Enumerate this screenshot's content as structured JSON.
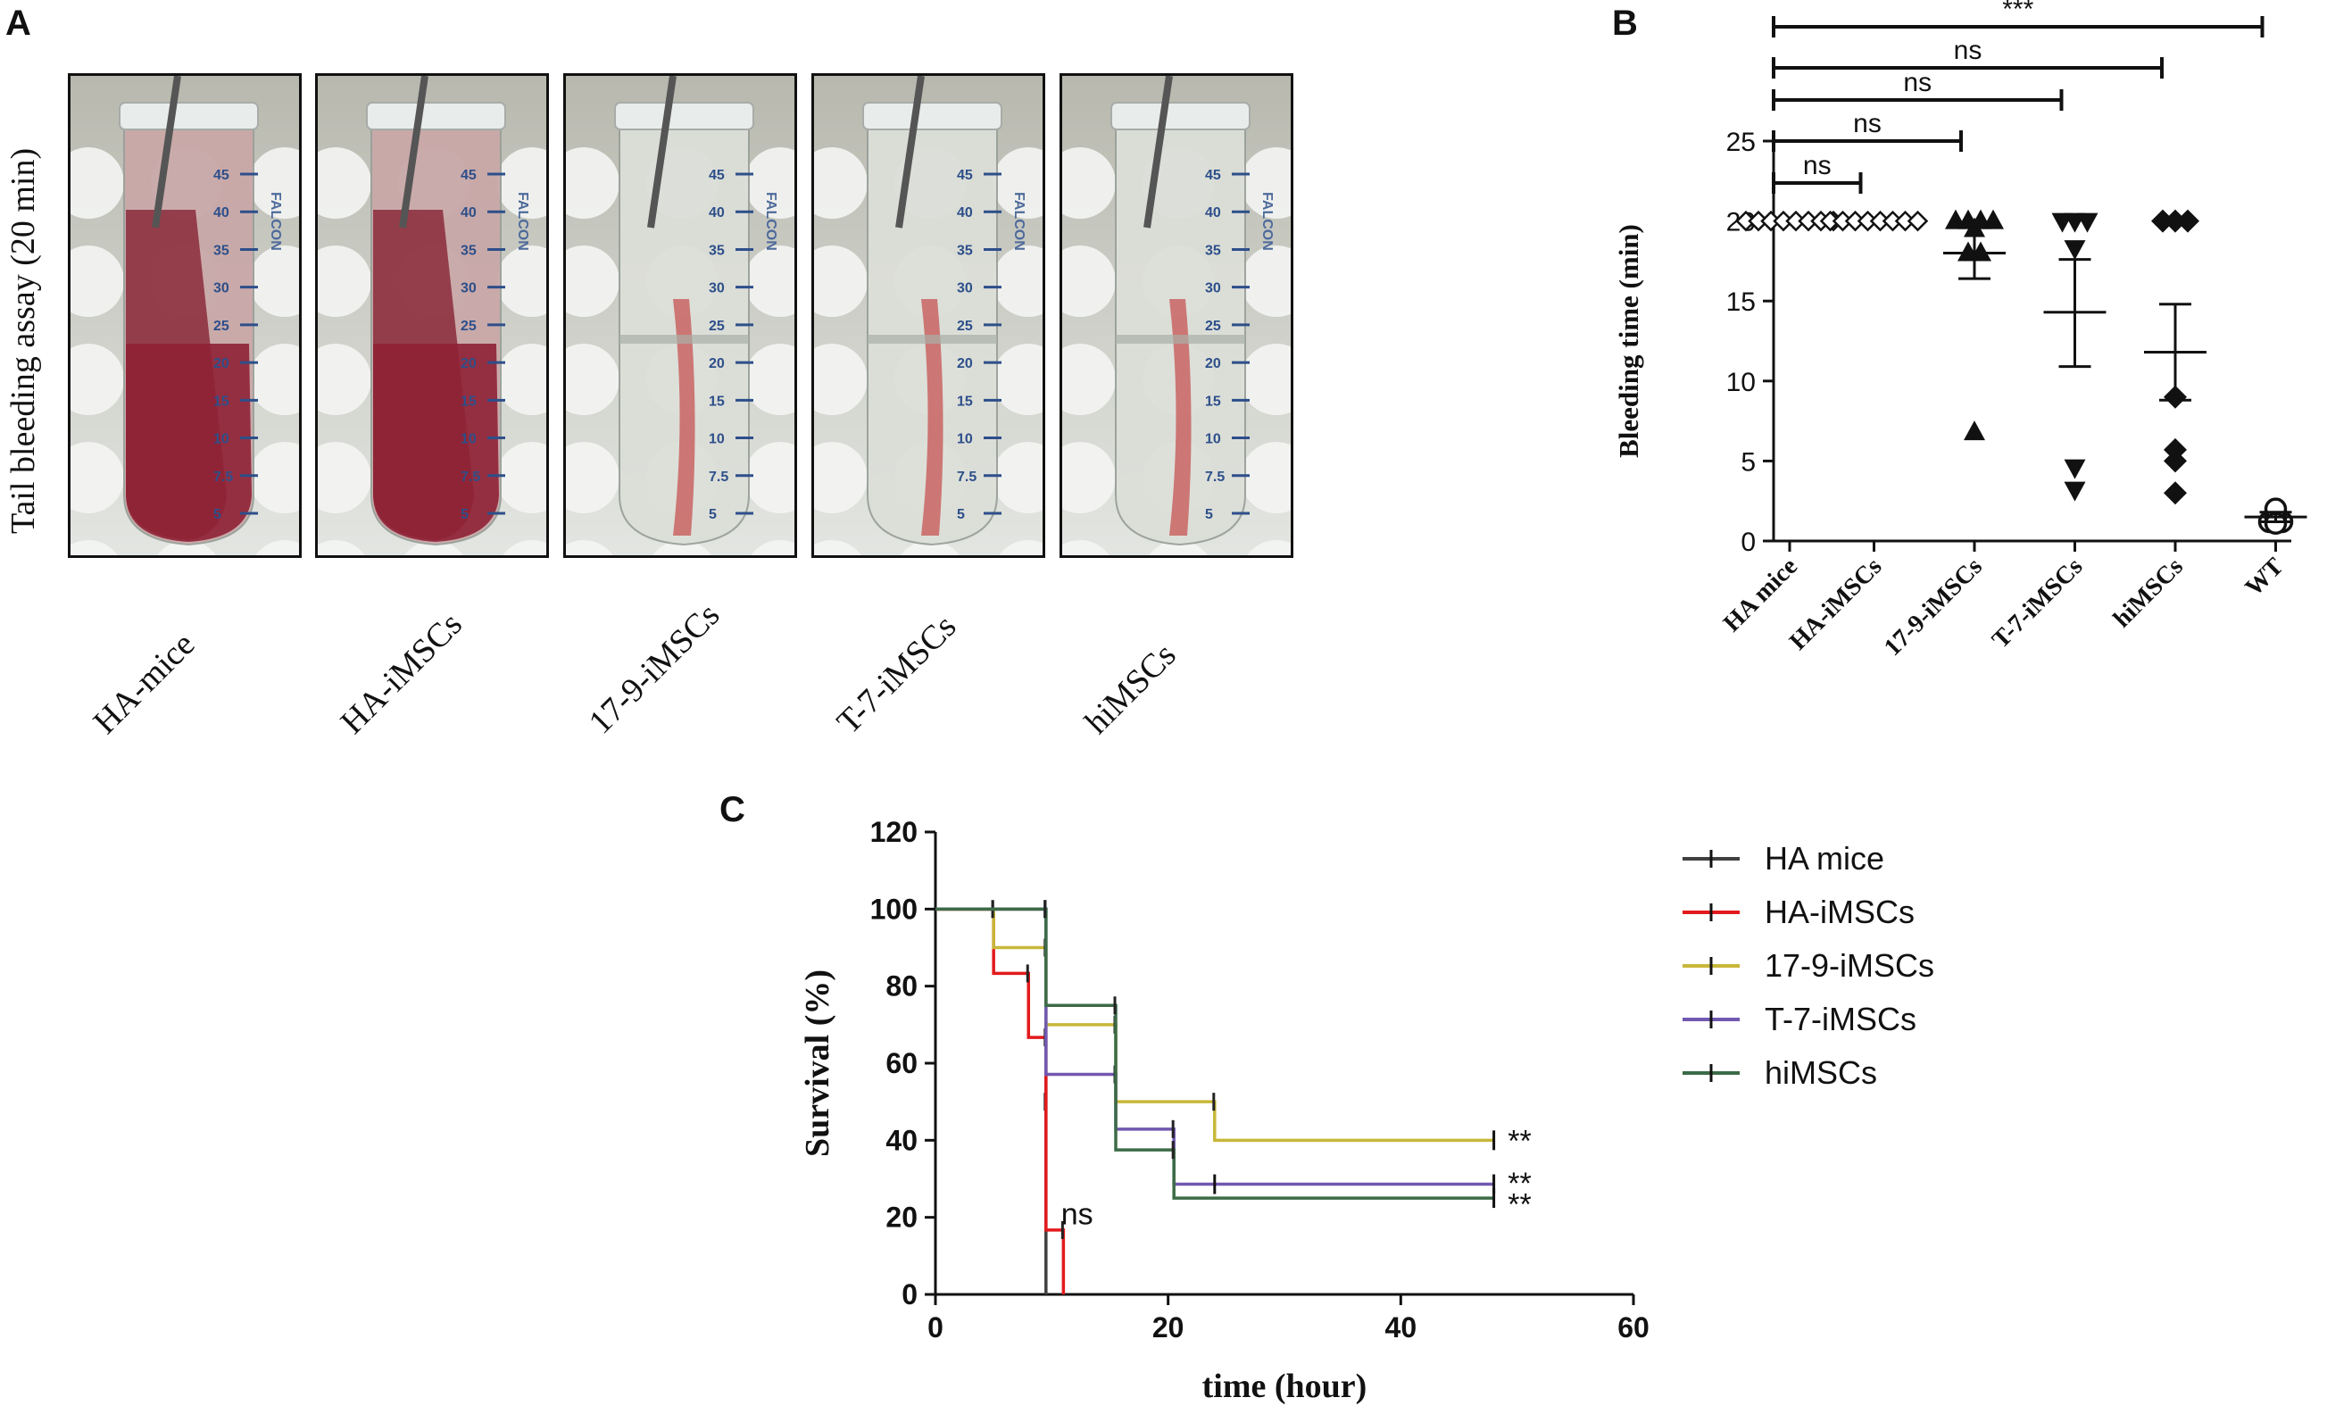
{
  "panels": {
    "a_letter": "A",
    "b_letter": "B",
    "c_letter": "C"
  },
  "panel_a": {
    "ylabel": "Tail bleeding assay (20 min)",
    "tubes": [
      {
        "label": "HA-mice",
        "blood": "heavy"
      },
      {
        "label": "HA-iMSCs",
        "blood": "heavy"
      },
      {
        "label": "17-9-iMSCs",
        "blood": "light"
      },
      {
        "label": "T-7-iMSCs",
        "blood": "light"
      },
      {
        "label": "hiMSCs",
        "blood": "light"
      }
    ],
    "tube_scale_marks": [
      "45",
      "40",
      "35",
      "30",
      "25",
      "20",
      "15",
      "10",
      "7.5",
      "5"
    ],
    "brand_text": "FALCON"
  },
  "chart_data": [
    {
      "type": "scatter",
      "panel": "B",
      "ylabel": "Bleeding time (min)",
      "ylim": [
        0,
        25
      ],
      "yticks": [
        "0",
        "5",
        "10",
        "15",
        "20",
        "25"
      ],
      "categories": [
        "HA mice",
        "HA-iMSCs",
        "17-9-iMSCs",
        "T-7-iMSCs",
        "hiMSCs",
        "WT"
      ],
      "markers": [
        "diamond-open",
        "diamond-open",
        "triangle-up",
        "triangle-down",
        "diamond",
        "circle-open"
      ],
      "points": [
        [
          20,
          20,
          20,
          20,
          20,
          20,
          20,
          20
        ],
        [
          20,
          20,
          20,
          20,
          20,
          20,
          20,
          20
        ],
        [
          20,
          20,
          20,
          20,
          19.5,
          18,
          18,
          6.8
        ],
        [
          20,
          20,
          20,
          18.3,
          4.6,
          3.2
        ],
        [
          20,
          20,
          20,
          9,
          5.7,
          5,
          3
        ],
        [
          1.2,
          1.2,
          1.4,
          1.6,
          1.8,
          2.0,
          1.1
        ]
      ],
      "mean": [
        20,
        20,
        18,
        14.3,
        11.8,
        1.5
      ],
      "sem_low": [
        20,
        20,
        16.4,
        10.9,
        8.8,
        1.2
      ],
      "sem_high": [
        20,
        20,
        19.6,
        17.6,
        14.8,
        1.8
      ],
      "significance": [
        {
          "from": "HA mice",
          "to": "HA-iMSCs",
          "label": "ns"
        },
        {
          "from": "HA mice",
          "to": "17-9-iMSCs",
          "label": "ns"
        },
        {
          "from": "HA mice",
          "to": "T-7-iMSCs",
          "label": "ns"
        },
        {
          "from": "HA mice",
          "to": "hiMSCs",
          "label": "ns"
        },
        {
          "from": "HA mice",
          "to": "WT",
          "label": "***"
        }
      ],
      "grid": false
    },
    {
      "type": "line",
      "panel": "C",
      "xlabel": "time (hour)",
      "ylabel": "Survival (%)",
      "xlim": [
        0,
        60
      ],
      "ylim": [
        0,
        120
      ],
      "xticks": [
        "0",
        "20",
        "40",
        "60"
      ],
      "yticks": [
        "0",
        "20",
        "40",
        "60",
        "80",
        "100",
        "120"
      ],
      "legend_position": "right",
      "step": true,
      "series": [
        {
          "name": "HA mice",
          "color": "#404040",
          "x": [
            0,
            5,
            8,
            9.5,
            9.5
          ],
          "y": [
            100,
            100,
            100,
            50,
            0
          ],
          "censor": []
        },
        {
          "name": "HA-iMSCs",
          "color": "#e31a1c",
          "x": [
            0,
            5,
            8,
            9.5,
            11,
            11
          ],
          "y": [
            100,
            83.3,
            66.7,
            16.7,
            16.7,
            0
          ],
          "censor": []
        },
        {
          "name": "17-9-iMSCs",
          "color": "#c8b73a",
          "x": [
            0,
            5,
            9.5,
            15.5,
            24,
            48
          ],
          "y": [
            100,
            90,
            70,
            50,
            40,
            40
          ],
          "censor": [
            [
              48,
              40
            ]
          ]
        },
        {
          "name": "T-7-iMSCs",
          "color": "#7158b0",
          "x": [
            0,
            9.5,
            15.5,
            20.5,
            48
          ],
          "y": [
            100,
            57.1,
            42.9,
            28.6,
            28.6
          ],
          "censor": [
            [
              24,
              28.6
            ],
            [
              48,
              28.6
            ]
          ]
        },
        {
          "name": "hiMSCs",
          "color": "#3c6b47",
          "x": [
            0,
            9.5,
            15.5,
            20.5,
            48
          ],
          "y": [
            100,
            75,
            37.5,
            25,
            25
          ],
          "censor": [
            [
              48,
              25
            ]
          ]
        }
      ],
      "annotations": [
        {
          "text": "ns",
          "x": 10.8,
          "y": 21
        },
        {
          "text": "**",
          "x": 49.2,
          "y": 40
        },
        {
          "text": "**",
          "x": 49.2,
          "y": 29
        },
        {
          "text": "**",
          "x": 49.2,
          "y": 23.5
        }
      ],
      "grid": false
    }
  ]
}
